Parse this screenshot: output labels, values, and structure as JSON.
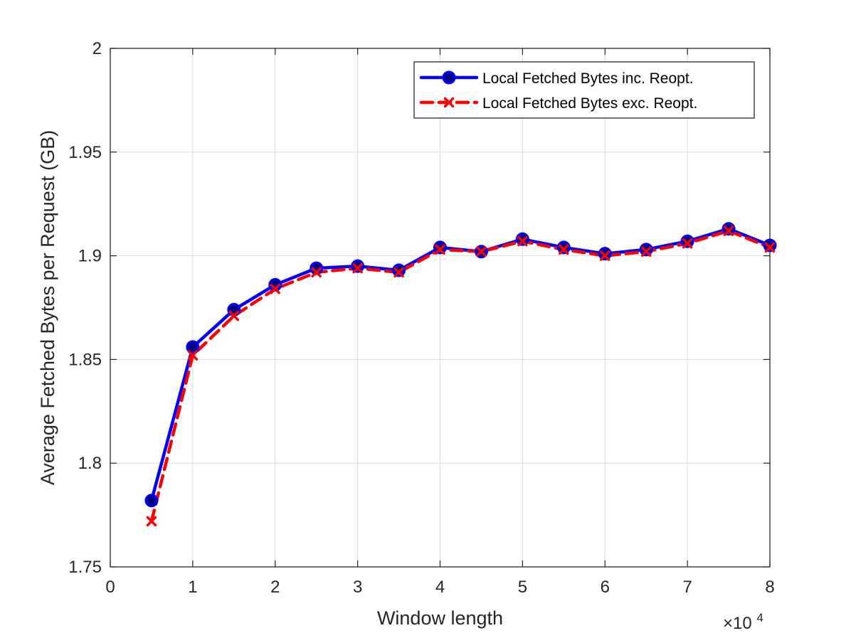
{
  "chart_data": {
    "type": "line",
    "xlabel": "Window length",
    "ylabel": "Average Fetched Bytes per Request (GB)",
    "x_exponent_label": "×10",
    "x_exponent_power": "4",
    "xlim": [
      0,
      80000
    ],
    "ylim": [
      1.75,
      2.0
    ],
    "x_ticks": [
      0,
      10000,
      20000,
      30000,
      40000,
      50000,
      60000,
      70000,
      80000
    ],
    "x_tick_labels": [
      "0",
      "1",
      "2",
      "3",
      "4",
      "5",
      "6",
      "7",
      "8"
    ],
    "y_ticks": [
      1.75,
      1.8,
      1.85,
      1.9,
      1.95,
      2.0
    ],
    "y_tick_labels": [
      "1.75",
      "1.8",
      "1.85",
      "1.9",
      "1.95",
      "2"
    ],
    "grid": true,
    "legend_position": "top-right",
    "x": [
      5000,
      10000,
      15000,
      20000,
      25000,
      30000,
      35000,
      40000,
      45000,
      50000,
      55000,
      60000,
      65000,
      70000,
      75000,
      80000
    ],
    "series": [
      {
        "name": "Local Fetched Bytes inc. Reopt.",
        "color": "#0000ff",
        "marker_color": "#000080",
        "style": "solid",
        "marker": "circle",
        "values": [
          1.782,
          1.856,
          1.874,
          1.886,
          1.894,
          1.895,
          1.893,
          1.904,
          1.902,
          1.908,
          1.904,
          1.901,
          1.903,
          1.907,
          1.913,
          1.905
        ]
      },
      {
        "name": "Local Fetched Bytes exc. Reopt.",
        "color": "#ff0000",
        "style": "dashed",
        "marker": "x",
        "values": [
          1.772,
          1.852,
          1.871,
          1.884,
          1.892,
          1.894,
          1.892,
          1.903,
          1.902,
          1.907,
          1.903,
          1.9,
          1.902,
          1.906,
          1.912,
          1.904
        ]
      }
    ]
  }
}
